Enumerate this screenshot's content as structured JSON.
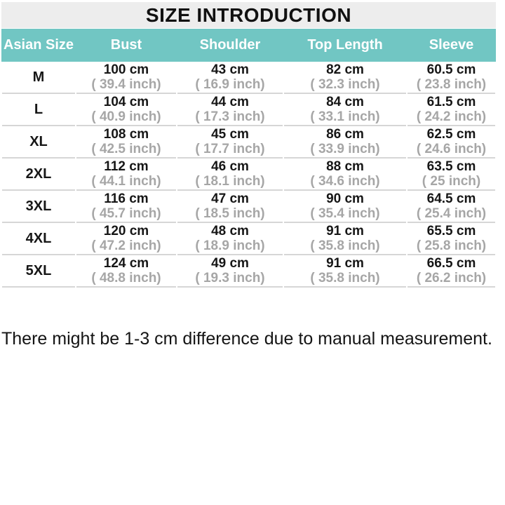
{
  "chart_data": {
    "type": "table",
    "title": "SIZE INTRODUCTION",
    "columns": [
      "Asian Size",
      "Bust",
      "Shoulder",
      "Top Length",
      "Sleeve"
    ],
    "rows": [
      {
        "size": "M",
        "values": [
          {
            "cm": "100 cm",
            "inch": "( 39.4 inch)"
          },
          {
            "cm": "43 cm",
            "inch": "( 16.9 inch)"
          },
          {
            "cm": "82 cm",
            "inch": "( 32.3 inch)"
          },
          {
            "cm": "60.5 cm",
            "inch": "( 23.8 inch)"
          }
        ]
      },
      {
        "size": "L",
        "values": [
          {
            "cm": "104 cm",
            "inch": "( 40.9 inch)"
          },
          {
            "cm": "44 cm",
            "inch": "( 17.3 inch)"
          },
          {
            "cm": "84 cm",
            "inch": "( 33.1 inch)"
          },
          {
            "cm": "61.5 cm",
            "inch": "( 24.2 inch)"
          }
        ]
      },
      {
        "size": "XL",
        "values": [
          {
            "cm": "108 cm",
            "inch": "( 42.5 inch)"
          },
          {
            "cm": "45 cm",
            "inch": "( 17.7 inch)"
          },
          {
            "cm": "86 cm",
            "inch": "( 33.9 inch)"
          },
          {
            "cm": "62.5 cm",
            "inch": "( 24.6 inch)"
          }
        ]
      },
      {
        "size": "2XL",
        "values": [
          {
            "cm": "112 cm",
            "inch": "( 44.1 inch)"
          },
          {
            "cm": "46 cm",
            "inch": "( 18.1 inch)"
          },
          {
            "cm": "88 cm",
            "inch": "( 34.6 inch)"
          },
          {
            "cm": "63.5 cm",
            "inch": "( 25 inch)"
          }
        ]
      },
      {
        "size": "3XL",
        "values": [
          {
            "cm": "116 cm",
            "inch": "( 45.7 inch)"
          },
          {
            "cm": "47 cm",
            "inch": "( 18.5 inch)"
          },
          {
            "cm": "90 cm",
            "inch": "( 35.4 inch)"
          },
          {
            "cm": "64.5 cm",
            "inch": "( 25.4 inch)"
          }
        ]
      },
      {
        "size": "4XL",
        "values": [
          {
            "cm": "120 cm",
            "inch": "( 47.2 inch)"
          },
          {
            "cm": "48 cm",
            "inch": "( 18.9 inch)"
          },
          {
            "cm": "91 cm",
            "inch": "( 35.8 inch)"
          },
          {
            "cm": "65.5 cm",
            "inch": "( 25.8 inch)"
          }
        ]
      },
      {
        "size": "5XL",
        "values": [
          {
            "cm": "124 cm",
            "inch": "( 48.8 inch)"
          },
          {
            "cm": "49 cm",
            "inch": "( 19.3 inch)"
          },
          {
            "cm": "91 cm",
            "inch": "( 35.8 inch)"
          },
          {
            "cm": "66.5 cm",
            "inch": "( 26.2 inch)"
          }
        ]
      },
      {
        "size": "",
        "values": []
      }
    ],
    "note": "There might be 1-3 cm difference due to manual measurement.",
    "layout": {
      "grid": "horizontal-rules-only",
      "legend": "none"
    },
    "colors": {
      "header_bg": "#71c6c3",
      "header_text": "#ffffff",
      "title_bg": "#ededed",
      "row_rule": "#d6d6d6",
      "inch_text": "#a6a6a6",
      "cm_text": "#161616"
    }
  }
}
